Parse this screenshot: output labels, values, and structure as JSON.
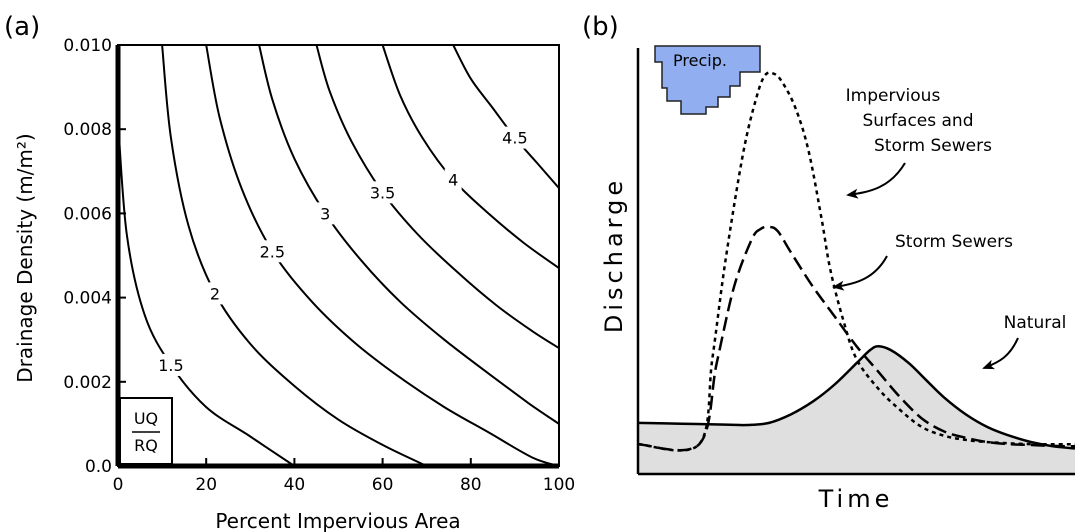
{
  "panel_a_label": "(a)",
  "panel_b_label": "(b)",
  "chart_data": [
    {
      "panel": "(a)",
      "type": "line",
      "xlabel": "Percent Impervious Area",
      "ylabel": "Drainage Density (m/m²)",
      "xlim": [
        0,
        100
      ],
      "ylim": [
        0,
        0.01
      ],
      "xticks": [
        "0",
        "20",
        "40",
        "60",
        "80",
        "100"
      ],
      "yticks": [
        "0.0",
        "0.002",
        "0.004",
        "0.006",
        "0.008",
        "0.010"
      ],
      "legend_ratio": {
        "numerator": "UQ",
        "denominator": "RQ"
      },
      "series": [
        {
          "name": "1.5",
          "x": [
            0,
            2,
            6,
            12,
            20,
            30,
            40
          ],
          "y": [
            0.0082,
            0.0055,
            0.0036,
            0.0024,
            0.0014,
            0.0007,
            0.0
          ]
        },
        {
          "name": "2",
          "x": [
            10,
            12,
            16,
            22,
            30,
            40,
            50,
            60,
            70
          ],
          "y": [
            0.01,
            0.0078,
            0.0057,
            0.0041,
            0.0029,
            0.0019,
            0.0011,
            0.0005,
            0.0
          ]
        },
        {
          "name": "2.5",
          "x": [
            20,
            23,
            28,
            35,
            44,
            54,
            64,
            74,
            84,
            94,
            100
          ],
          "y": [
            0.01,
            0.0083,
            0.0066,
            0.0051,
            0.0039,
            0.0029,
            0.0021,
            0.0014,
            0.0008,
            0.0002,
            0.0
          ]
        },
        {
          "name": "3",
          "x": [
            32,
            35,
            40,
            47,
            55,
            64,
            74,
            84,
            93,
            100
          ],
          "y": [
            0.01,
            0.0087,
            0.0073,
            0.006,
            0.0049,
            0.0039,
            0.003,
            0.0022,
            0.0015,
            0.001
          ]
        },
        {
          "name": "3.5",
          "x": [
            45,
            48,
            53,
            60,
            68,
            77,
            86,
            94,
            100
          ],
          "y": [
            0.01,
            0.0089,
            0.0077,
            0.0065,
            0.0055,
            0.0046,
            0.0038,
            0.0032,
            0.0028
          ]
        },
        {
          "name": "4",
          "x": [
            60,
            64,
            69,
            76,
            84,
            92,
            100
          ],
          "y": [
            0.01,
            0.0088,
            0.0078,
            0.0068,
            0.006,
            0.0053,
            0.0047
          ]
        },
        {
          "name": "4.5",
          "x": [
            76,
            80,
            85,
            90,
            95,
            100
          ],
          "y": [
            0.01,
            0.0092,
            0.0085,
            0.0078,
            0.0072,
            0.0066
          ]
        }
      ]
    },
    {
      "panel": "(b)",
      "type": "line",
      "xlabel": "Time",
      "ylabel": "Discharge",
      "precip_label": "Precip.",
      "series": [
        {
          "name": "Natural",
          "style": "solid",
          "fill": "#e0dfe0",
          "x": [
            0,
            10,
            20,
            25,
            30,
            35,
            40,
            45,
            50,
            53,
            55,
            58,
            62,
            66,
            70,
            75,
            80,
            85,
            90,
            95,
            100
          ],
          "y": [
            0.12,
            0.118,
            0.116,
            0.115,
            0.12,
            0.14,
            0.17,
            0.21,
            0.26,
            0.29,
            0.3,
            0.29,
            0.26,
            0.22,
            0.18,
            0.14,
            0.11,
            0.09,
            0.075,
            0.065,
            0.06
          ]
        },
        {
          "name": "Storm Sewers",
          "style": "dashed",
          "x": [
            0,
            14,
            18,
            22,
            26,
            28,
            30,
            32,
            35,
            40,
            45,
            50,
            55,
            60,
            65,
            70,
            75,
            80,
            85,
            90,
            95,
            100
          ],
          "y": [
            0.07,
            0.07,
            0.26,
            0.44,
            0.55,
            0.575,
            0.58,
            0.57,
            0.52,
            0.44,
            0.37,
            0.3,
            0.24,
            0.18,
            0.13,
            0.1,
            0.085,
            0.075,
            0.07,
            0.068,
            0.066,
            0.065
          ]
        },
        {
          "name": "Impervious Surfaces and Storm Sewers",
          "style": "dotted",
          "x": [
            0,
            14,
            17,
            20,
            24,
            27,
            29,
            31,
            33,
            36,
            39,
            42,
            44,
            47,
            50,
            55,
            60,
            65,
            70,
            75,
            80,
            85,
            90,
            95,
            100
          ],
          "y": [
            0.07,
            0.07,
            0.27,
            0.5,
            0.75,
            0.88,
            0.935,
            0.94,
            0.92,
            0.86,
            0.76,
            0.6,
            0.48,
            0.36,
            0.27,
            0.2,
            0.15,
            0.11,
            0.09,
            0.08,
            0.075,
            0.072,
            0.07,
            0.07,
            0.07
          ]
        }
      ],
      "annotations": {
        "impervious": [
          "Impervious",
          "Surfaces and",
          "Storm Sewers"
        ],
        "storm": "Storm Sewers",
        "natural": "Natural"
      }
    }
  ]
}
